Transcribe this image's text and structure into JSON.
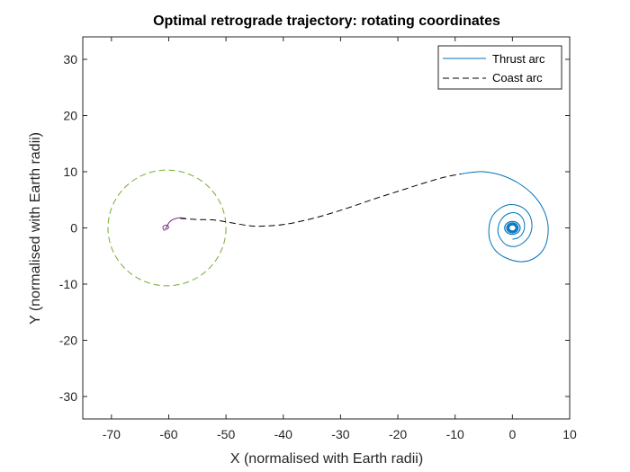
{
  "chart_data": {
    "type": "line",
    "title": "Optimal retrograde trajectory: rotating coordinates",
    "xlabel": "X (normalised with Earth radii)",
    "ylabel": "Y (normalised with Earth radii)",
    "xlim": [
      -75,
      10
    ],
    "ylim": [
      -34,
      34
    ],
    "xticks": [
      -70,
      -60,
      -50,
      -40,
      -30,
      -20,
      -10,
      0,
      10
    ],
    "yticks": [
      -30,
      -20,
      -10,
      0,
      10,
      20,
      30
    ],
    "grid": false,
    "legend_position": "top-right",
    "colors": {
      "thrust": "#0072BD",
      "coast": "#000000",
      "moon_circle": "#77AC30",
      "moon_spiral": "#7E2F8E",
      "axes": "#262626"
    },
    "series": [
      {
        "name": "Thrust arc",
        "style": "solid",
        "color": "#0072BD",
        "x": [
          -9,
          -7,
          -5,
          -2,
          1,
          3.5,
          5.3,
          6.2,
          6.0,
          5.0,
          3.2,
          1.2,
          -1.0,
          -2.8,
          -3.9,
          -4.1,
          -3.6,
          -2.4,
          -0.8,
          0.9,
          2.3,
          3.2,
          3.4,
          2.9,
          1.8,
          0.5,
          -0.9,
          -1.9,
          -2.5,
          -2.4,
          -1.8,
          -0.8,
          0.4,
          1.4,
          2.0,
          2.1,
          1.7,
          0.9,
          0.0
        ],
        "y": [
          9.6,
          9.9,
          10.0,
          9.4,
          8.0,
          6.0,
          3.5,
          0.6,
          -2.4,
          -4.4,
          -5.7,
          -6.0,
          -5.4,
          -4.2,
          -2.3,
          -0.1,
          1.9,
          3.3,
          4.1,
          4.0,
          3.2,
          1.8,
          0.1,
          -1.5,
          -2.7,
          -3.3,
          -3.1,
          -2.2,
          -0.9,
          0.5,
          1.7,
          2.5,
          2.7,
          2.2,
          1.2,
          0.0,
          -1.1,
          -1.8,
          -2.0
        ]
      },
      {
        "name": "Coast arc",
        "style": "dashed",
        "color": "#000000",
        "x": [
          -58,
          -55,
          -52,
          -49,
          -46,
          -44,
          -40,
          -36,
          -32,
          -28,
          -24,
          -20,
          -16,
          -12,
          -9
        ],
        "y": [
          1.7,
          1.5,
          1.4,
          0.9,
          0.4,
          0.3,
          0.6,
          1.4,
          2.5,
          3.8,
          5.2,
          6.5,
          7.8,
          9.0,
          9.6
        ]
      }
    ],
    "unlabeled_series": [
      {
        "shape": "circle",
        "style": "dashed",
        "color": "#77AC30",
        "center": [
          -60.3,
          0
        ],
        "radius": 10.3
      },
      {
        "shape": "spiral",
        "style": "solid",
        "color": "#7E2F8E",
        "x": [
          -60.4,
          -60.0,
          -60.4,
          -61.0,
          -60.7,
          -59.9,
          -59.0,
          -58.0,
          -57.0
        ],
        "y": [
          -0.3,
          0.1,
          0.5,
          0.2,
          -0.4,
          1.0,
          1.6,
          1.8,
          1.7
        ]
      }
    ]
  }
}
